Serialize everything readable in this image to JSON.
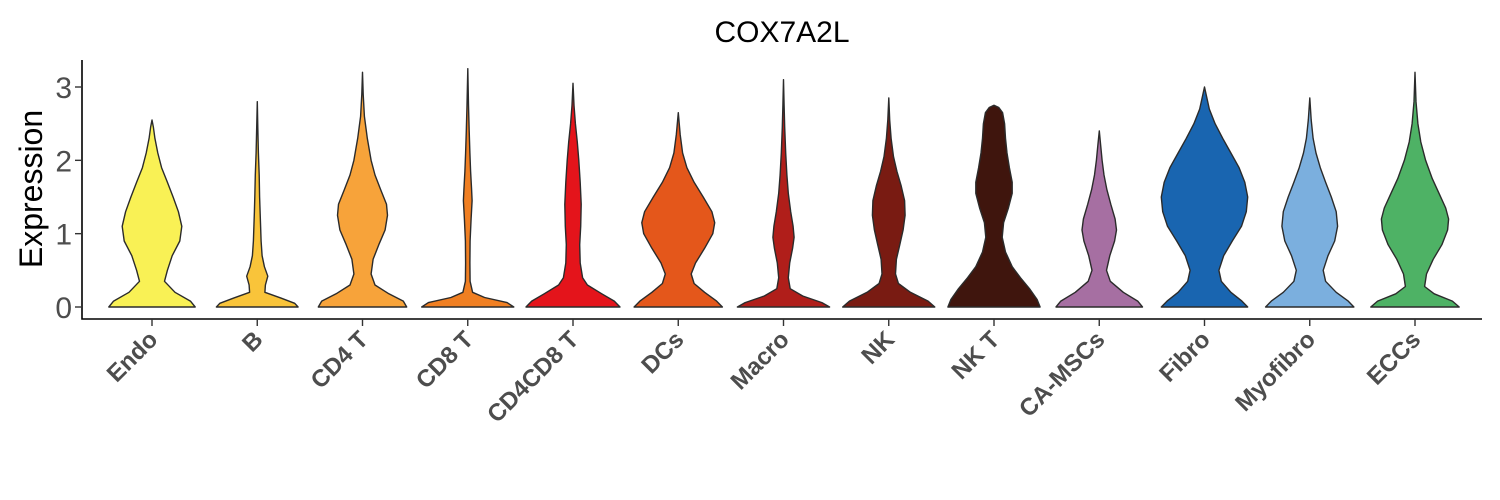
{
  "chart_data": {
    "type": "violin",
    "title": "COX7A2L",
    "ylabel": "Expression",
    "xlabel": "",
    "ylim": [
      -0.15,
      3.4
    ],
    "yticks": [
      0,
      1,
      2,
      3
    ],
    "grid": false,
    "legend": "none",
    "categories": [
      "Endo",
      "B",
      "CD4 T",
      "CD8 T",
      "CD4CD8 T",
      "DCs",
      "Macro",
      "NK",
      "NK T",
      "CA-MSCs",
      "Fibro",
      "Myofibro",
      "ECCs"
    ],
    "series": [
      {
        "category": "Endo",
        "color": "#F9F155",
        "max": 2.55,
        "density": [
          [
            0,
            0.9
          ],
          [
            0.08,
            0.8
          ],
          [
            0.2,
            0.48
          ],
          [
            0.35,
            0.26
          ],
          [
            0.5,
            0.32
          ],
          [
            0.7,
            0.42
          ],
          [
            0.9,
            0.58
          ],
          [
            1.1,
            0.62
          ],
          [
            1.3,
            0.55
          ],
          [
            1.5,
            0.44
          ],
          [
            1.7,
            0.32
          ],
          [
            1.9,
            0.2
          ],
          [
            2.1,
            0.12
          ],
          [
            2.3,
            0.06
          ],
          [
            2.45,
            0.03
          ],
          [
            2.55,
            0
          ]
        ]
      },
      {
        "category": "B",
        "color": "#F9C43A",
        "max": 2.8,
        "density": [
          [
            0,
            0.85
          ],
          [
            0.05,
            0.78
          ],
          [
            0.12,
            0.5
          ],
          [
            0.2,
            0.16
          ],
          [
            0.3,
            0.17
          ],
          [
            0.42,
            0.22
          ],
          [
            0.55,
            0.15
          ],
          [
            0.7,
            0.1
          ],
          [
            0.9,
            0.08
          ],
          [
            1.1,
            0.07
          ],
          [
            1.3,
            0.06
          ],
          [
            1.5,
            0.05
          ],
          [
            1.8,
            0.04
          ],
          [
            2.1,
            0.025
          ],
          [
            2.45,
            0.012
          ],
          [
            2.8,
            0
          ]
        ]
      },
      {
        "category": "CD4 T",
        "color": "#F7A33A",
        "max": 3.2,
        "density": [
          [
            0,
            0.92
          ],
          [
            0.08,
            0.85
          ],
          [
            0.18,
            0.55
          ],
          [
            0.3,
            0.26
          ],
          [
            0.45,
            0.18
          ],
          [
            0.65,
            0.22
          ],
          [
            0.85,
            0.34
          ],
          [
            1.05,
            0.47
          ],
          [
            1.25,
            0.52
          ],
          [
            1.4,
            0.5
          ],
          [
            1.6,
            0.38
          ],
          [
            1.8,
            0.26
          ],
          [
            2.0,
            0.18
          ],
          [
            2.3,
            0.1
          ],
          [
            2.6,
            0.04
          ],
          [
            2.9,
            0.015
          ],
          [
            3.2,
            0
          ]
        ]
      },
      {
        "category": "CD8 T",
        "color": "#F07F22",
        "max": 3.25,
        "density": [
          [
            0,
            0.96
          ],
          [
            0.06,
            0.82
          ],
          [
            0.13,
            0.35
          ],
          [
            0.2,
            0.1
          ],
          [
            0.35,
            0.05
          ],
          [
            0.6,
            0.045
          ],
          [
            0.9,
            0.05
          ],
          [
            1.2,
            0.07
          ],
          [
            1.45,
            0.09
          ],
          [
            1.6,
            0.08
          ],
          [
            1.85,
            0.06
          ],
          [
            2.1,
            0.045
          ],
          [
            2.4,
            0.03
          ],
          [
            2.75,
            0.015
          ],
          [
            3.25,
            0
          ]
        ]
      },
      {
        "category": "CD4CD8 T",
        "color": "#E4141B",
        "max": 3.05,
        "density": [
          [
            0,
            0.98
          ],
          [
            0.08,
            0.86
          ],
          [
            0.18,
            0.6
          ],
          [
            0.3,
            0.3
          ],
          [
            0.4,
            0.2
          ],
          [
            0.6,
            0.15
          ],
          [
            0.85,
            0.14
          ],
          [
            1.1,
            0.16
          ],
          [
            1.4,
            0.17
          ],
          [
            1.7,
            0.15
          ],
          [
            2.0,
            0.12
          ],
          [
            2.25,
            0.09
          ],
          [
            2.5,
            0.05
          ],
          [
            2.75,
            0.02
          ],
          [
            3.05,
            0
          ]
        ]
      },
      {
        "category": "DCs",
        "color": "#E4571B",
        "max": 2.65,
        "density": [
          [
            0,
            0.92
          ],
          [
            0.08,
            0.8
          ],
          [
            0.2,
            0.55
          ],
          [
            0.32,
            0.33
          ],
          [
            0.45,
            0.27
          ],
          [
            0.6,
            0.36
          ],
          [
            0.8,
            0.55
          ],
          [
            1.0,
            0.72
          ],
          [
            1.15,
            0.76
          ],
          [
            1.3,
            0.7
          ],
          [
            1.5,
            0.52
          ],
          [
            1.7,
            0.33
          ],
          [
            1.9,
            0.18
          ],
          [
            2.1,
            0.09
          ],
          [
            2.35,
            0.04
          ],
          [
            2.65,
            0
          ]
        ]
      },
      {
        "category": "Macro",
        "color": "#B01E1A",
        "max": 3.1,
        "density": [
          [
            0,
            0.96
          ],
          [
            0.06,
            0.8
          ],
          [
            0.15,
            0.4
          ],
          [
            0.25,
            0.14
          ],
          [
            0.4,
            0.1
          ],
          [
            0.6,
            0.13
          ],
          [
            0.8,
            0.19
          ],
          [
            0.95,
            0.22
          ],
          [
            1.1,
            0.2
          ],
          [
            1.3,
            0.15
          ],
          [
            1.55,
            0.1
          ],
          [
            1.8,
            0.07
          ],
          [
            2.1,
            0.045
          ],
          [
            2.45,
            0.025
          ],
          [
            2.75,
            0.012
          ],
          [
            3.1,
            0
          ]
        ]
      },
      {
        "category": "NK",
        "color": "#791B12",
        "max": 2.85,
        "density": [
          [
            0,
            0.96
          ],
          [
            0.08,
            0.82
          ],
          [
            0.2,
            0.45
          ],
          [
            0.32,
            0.2
          ],
          [
            0.45,
            0.14
          ],
          [
            0.65,
            0.16
          ],
          [
            0.85,
            0.23
          ],
          [
            1.05,
            0.3
          ],
          [
            1.25,
            0.34
          ],
          [
            1.45,
            0.33
          ],
          [
            1.65,
            0.26
          ],
          [
            1.85,
            0.17
          ],
          [
            2.05,
            0.1
          ],
          [
            2.3,
            0.05
          ],
          [
            2.55,
            0.02
          ],
          [
            2.85,
            0
          ]
        ]
      },
      {
        "category": "NK T",
        "color": "#3F150D",
        "max": 2.75,
        "density": [
          [
            0,
            0.96
          ],
          [
            0.1,
            0.9
          ],
          [
            0.25,
            0.74
          ],
          [
            0.4,
            0.55
          ],
          [
            0.55,
            0.38
          ],
          [
            0.75,
            0.24
          ],
          [
            0.95,
            0.17
          ],
          [
            1.15,
            0.2
          ],
          [
            1.35,
            0.3
          ],
          [
            1.55,
            0.38
          ],
          [
            1.7,
            0.38
          ],
          [
            1.9,
            0.32
          ],
          [
            2.1,
            0.27
          ],
          [
            2.3,
            0.24
          ],
          [
            2.5,
            0.22
          ],
          [
            2.65,
            0.18
          ],
          [
            2.72,
            0.1
          ],
          [
            2.75,
            0
          ]
        ]
      },
      {
        "category": "CA-MSCs",
        "color": "#A66FA2",
        "max": 2.4,
        "density": [
          [
            0,
            0.9
          ],
          [
            0.08,
            0.8
          ],
          [
            0.2,
            0.5
          ],
          [
            0.35,
            0.23
          ],
          [
            0.5,
            0.15
          ],
          [
            0.7,
            0.22
          ],
          [
            0.9,
            0.32
          ],
          [
            1.05,
            0.36
          ],
          [
            1.2,
            0.33
          ],
          [
            1.4,
            0.24
          ],
          [
            1.6,
            0.16
          ],
          [
            1.8,
            0.1
          ],
          [
            2.0,
            0.06
          ],
          [
            2.2,
            0.03
          ],
          [
            2.4,
            0
          ]
        ]
      },
      {
        "category": "Fibro",
        "color": "#1965B0",
        "max": 3.0,
        "density": [
          [
            0,
            0.9
          ],
          [
            0.08,
            0.78
          ],
          [
            0.2,
            0.55
          ],
          [
            0.35,
            0.35
          ],
          [
            0.5,
            0.3
          ],
          [
            0.7,
            0.4
          ],
          [
            0.9,
            0.58
          ],
          [
            1.1,
            0.77
          ],
          [
            1.3,
            0.87
          ],
          [
            1.5,
            0.9
          ],
          [
            1.7,
            0.84
          ],
          [
            1.9,
            0.72
          ],
          [
            2.1,
            0.55
          ],
          [
            2.3,
            0.38
          ],
          [
            2.5,
            0.22
          ],
          [
            2.7,
            0.1
          ],
          [
            2.85,
            0.05
          ],
          [
            3.0,
            0
          ]
        ]
      },
      {
        "category": "Myofibro",
        "color": "#7BAFDE",
        "max": 2.85,
        "density": [
          [
            0,
            0.92
          ],
          [
            0.08,
            0.8
          ],
          [
            0.2,
            0.55
          ],
          [
            0.35,
            0.33
          ],
          [
            0.5,
            0.28
          ],
          [
            0.7,
            0.38
          ],
          [
            0.9,
            0.52
          ],
          [
            1.1,
            0.58
          ],
          [
            1.3,
            0.55
          ],
          [
            1.5,
            0.45
          ],
          [
            1.7,
            0.33
          ],
          [
            1.9,
            0.22
          ],
          [
            2.1,
            0.13
          ],
          [
            2.3,
            0.07
          ],
          [
            2.55,
            0.03
          ],
          [
            2.85,
            0
          ]
        ]
      },
      {
        "category": "ECCs",
        "color": "#4EB265",
        "max": 3.2,
        "density": [
          [
            0,
            0.92
          ],
          [
            0.08,
            0.78
          ],
          [
            0.18,
            0.4
          ],
          [
            0.28,
            0.2
          ],
          [
            0.45,
            0.24
          ],
          [
            0.65,
            0.38
          ],
          [
            0.85,
            0.56
          ],
          [
            1.05,
            0.68
          ],
          [
            1.2,
            0.7
          ],
          [
            1.35,
            0.64
          ],
          [
            1.55,
            0.5
          ],
          [
            1.75,
            0.36
          ],
          [
            2.0,
            0.22
          ],
          [
            2.25,
            0.12
          ],
          [
            2.5,
            0.06
          ],
          [
            2.8,
            0.02
          ],
          [
            3.2,
            0
          ]
        ]
      }
    ]
  }
}
